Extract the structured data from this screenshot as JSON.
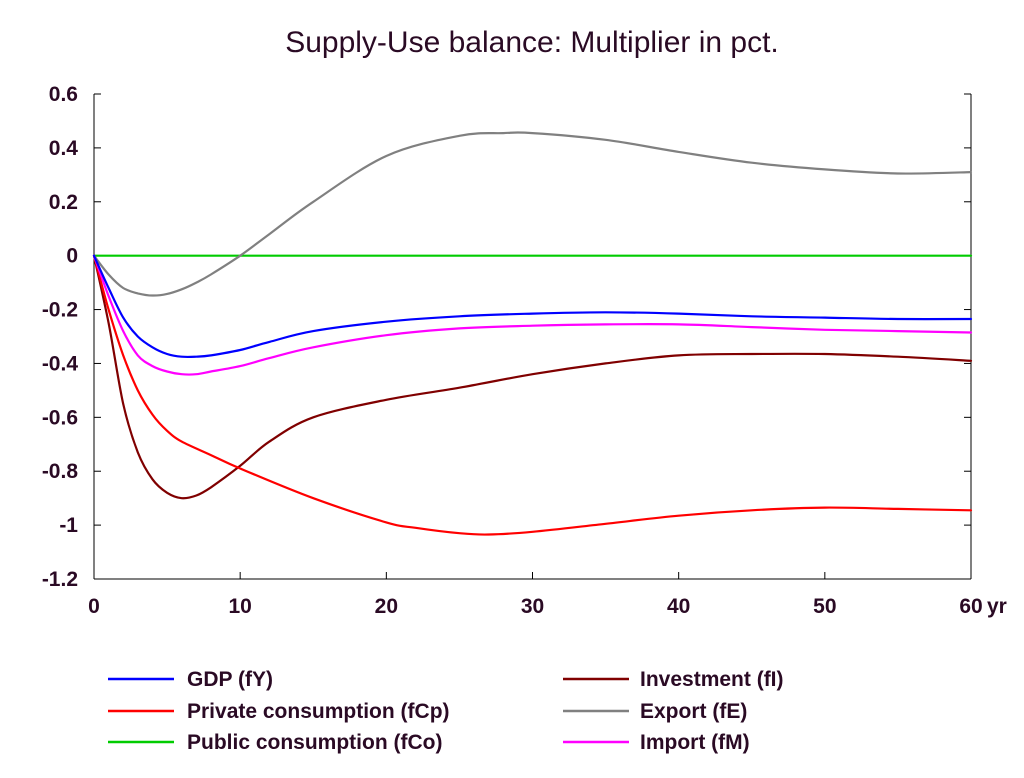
{
  "chart_data": {
    "type": "line",
    "title": "Supply-Use balance: Multiplier in pct.",
    "xlabel": "",
    "ylabel": "",
    "x_unit_label": "yr",
    "xlim": [
      0,
      60
    ],
    "ylim": [
      -1.2,
      0.6
    ],
    "x_ticks": [
      0,
      10,
      20,
      30,
      40,
      50,
      60
    ],
    "x_tick_labels": [
      "0",
      "10",
      "20",
      "30",
      "40",
      "50",
      "60"
    ],
    "y_ticks": [
      0.6,
      0.4,
      0.2,
      0,
      -0.2,
      -0.4,
      -0.6,
      -0.8,
      -1,
      -1.2
    ],
    "y_tick_labels": [
      "0.6",
      "0.4",
      "0.2",
      "0",
      "-0.2",
      "-0.4",
      "-0.6",
      "-0.8",
      "-1",
      "-1.2"
    ],
    "grid": false,
    "legend_position": "bottom",
    "series": [
      {
        "name": "GDP (fY)",
        "color": "#0000ff",
        "x": [
          0,
          1,
          2,
          3,
          4,
          5,
          6,
          7,
          8,
          10,
          12,
          15,
          20,
          25,
          30,
          35,
          40,
          45,
          50,
          55,
          60
        ],
        "values": [
          0,
          -0.12,
          -0.23,
          -0.3,
          -0.34,
          -0.365,
          -0.375,
          -0.375,
          -0.37,
          -0.35,
          -0.32,
          -0.28,
          -0.245,
          -0.225,
          -0.215,
          -0.21,
          -0.215,
          -0.225,
          -0.23,
          -0.235,
          -0.235
        ]
      },
      {
        "name": "Private consumption (fCp)",
        "color": "#ff0000",
        "x": [
          0,
          1,
          2,
          3,
          4,
          5,
          6,
          8,
          10,
          15,
          20,
          22,
          25,
          27,
          30,
          35,
          40,
          45,
          50,
          55,
          60
        ],
        "values": [
          0,
          -0.2,
          -0.37,
          -0.5,
          -0.59,
          -0.65,
          -0.69,
          -0.74,
          -0.79,
          -0.9,
          -0.99,
          -1.01,
          -1.03,
          -1.035,
          -1.025,
          -0.995,
          -0.965,
          -0.945,
          -0.935,
          -0.94,
          -0.945
        ]
      },
      {
        "name": "Public consumption (fCo)",
        "color": "#00cc00",
        "x": [
          0,
          10,
          20,
          30,
          40,
          50,
          60
        ],
        "values": [
          0,
          0,
          0,
          0,
          0,
          0,
          0
        ]
      },
      {
        "name": "Investment (fI)",
        "color": "#800000",
        "x": [
          0,
          1,
          2,
          3,
          4,
          5,
          6,
          7,
          8,
          10,
          12,
          15,
          20,
          25,
          30,
          35,
          40,
          45,
          50,
          55,
          60
        ],
        "values": [
          0,
          -0.25,
          -0.55,
          -0.73,
          -0.83,
          -0.88,
          -0.9,
          -0.89,
          -0.86,
          -0.78,
          -0.69,
          -0.6,
          -0.535,
          -0.49,
          -0.44,
          -0.4,
          -0.37,
          -0.365,
          -0.365,
          -0.375,
          -0.39
        ]
      },
      {
        "name": "Export (fE)",
        "color": "#808080",
        "x": [
          0,
          1,
          2,
          3,
          4,
          5,
          6,
          7,
          8,
          10,
          12,
          15,
          20,
          25,
          28,
          30,
          35,
          40,
          45,
          50,
          55,
          60
        ],
        "values": [
          0,
          -0.07,
          -0.12,
          -0.14,
          -0.148,
          -0.142,
          -0.125,
          -0.1,
          -0.07,
          0,
          0.08,
          0.2,
          0.37,
          0.445,
          0.455,
          0.455,
          0.43,
          0.385,
          0.345,
          0.32,
          0.305,
          0.31
        ]
      },
      {
        "name": "Import (fM)",
        "color": "#ff00ff",
        "x": [
          0,
          1,
          2,
          3,
          4,
          5,
          6,
          7,
          8,
          10,
          12,
          15,
          20,
          25,
          30,
          35,
          40,
          45,
          50,
          55,
          60
        ],
        "values": [
          0,
          -0.15,
          -0.28,
          -0.37,
          -0.41,
          -0.43,
          -0.44,
          -0.44,
          -0.43,
          -0.41,
          -0.38,
          -0.34,
          -0.295,
          -0.27,
          -0.26,
          -0.255,
          -0.255,
          -0.265,
          -0.275,
          -0.28,
          -0.285
        ]
      }
    ]
  }
}
